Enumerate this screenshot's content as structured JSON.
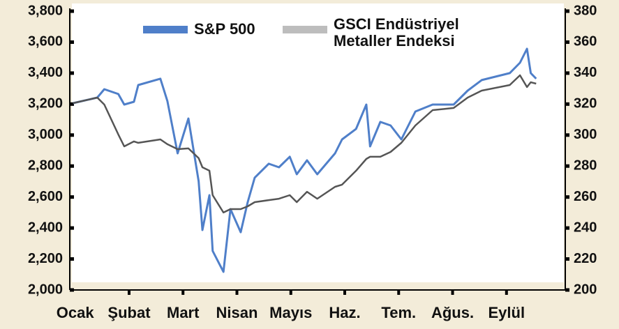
{
  "chart_data": {
    "type": "line",
    "categories": [
      "Ocak",
      "Şubat",
      "Mart",
      "Nisan",
      "Mayıs",
      "Haz.",
      "Tem.",
      "Ağus.",
      "Eylül"
    ],
    "x": [
      -0.04,
      0.41,
      0.54,
      0.8,
      0.91,
      1.09,
      1.17,
      1.58,
      1.71,
      1.9,
      2.1,
      2.29,
      2.36,
      2.49,
      2.55,
      2.75,
      2.88,
      3.07,
      3.2,
      3.33,
      3.59,
      3.78,
      3.98,
      4.11,
      4.3,
      4.49,
      4.82,
      4.95,
      5.21,
      5.4,
      5.47,
      5.66,
      5.85,
      6.05,
      6.31,
      6.63,
      7.02,
      7.28,
      7.54,
      8.06,
      8.25,
      8.38,
      8.45,
      8.55
    ],
    "xlim": [
      -0.1,
      9.09
    ],
    "series": [
      {
        "name": "S&P 500",
        "color": "#4f7fc9",
        "legend_color": "#4f7fc9",
        "values": [
          3206,
          3242,
          3296,
          3265,
          3197,
          3215,
          3323,
          3364,
          3220,
          2882,
          3107,
          2702,
          2387,
          2612,
          2252,
          2117,
          2522,
          2373,
          2567,
          2725,
          2815,
          2792,
          2860,
          2747,
          2837,
          2747,
          2882,
          2972,
          3040,
          3197,
          2927,
          3085,
          3062,
          2972,
          3152,
          3197,
          3197,
          3287,
          3355,
          3400,
          3467,
          3557,
          3400,
          3364
        ]
      },
      {
        "name": "GSCI Endüstriyel Metaller Endeksi",
        "color": "#555555",
        "legend_color": "#bdbdbd",
        "axis": "y2",
        "values": [
          320.6,
          324.2,
          319.7,
          300.4,
          292.7,
          295.9,
          295.0,
          297.2,
          294.1,
          290.9,
          291.4,
          285.1,
          279.2,
          277.0,
          261.2,
          250.0,
          252.2,
          252.2,
          254.0,
          256.7,
          258.0,
          258.9,
          261.2,
          256.7,
          263.4,
          258.9,
          266.6,
          268.0,
          277.0,
          284.6,
          286.0,
          286.0,
          289.1,
          295.0,
          306.2,
          316.1,
          317.5,
          324.2,
          328.7,
          332.3,
          338.6,
          331.0,
          334.1,
          333.2
        ]
      }
    ],
    "ylim": [
      2000,
      3800
    ],
    "yticks": [
      {
        "value": 2000,
        "label": "2,000"
      },
      {
        "value": 2200,
        "label": "2,200"
      },
      {
        "value": 2400,
        "label": "2,400"
      },
      {
        "value": 2600,
        "label": "2,600"
      },
      {
        "value": 2800,
        "label": "2,800"
      },
      {
        "value": 3000,
        "label": "3,000"
      },
      {
        "value": 3200,
        "label": "3,200"
      },
      {
        "value": 3400,
        "label": "3,400"
      },
      {
        "value": 3600,
        "label": "3,600"
      },
      {
        "value": 3800,
        "label": "3,800"
      }
    ],
    "y2lim": [
      200,
      380
    ],
    "y2ticks": [
      200,
      220,
      240,
      260,
      280,
      300,
      320,
      340,
      360,
      380
    ],
    "grid": false
  }
}
